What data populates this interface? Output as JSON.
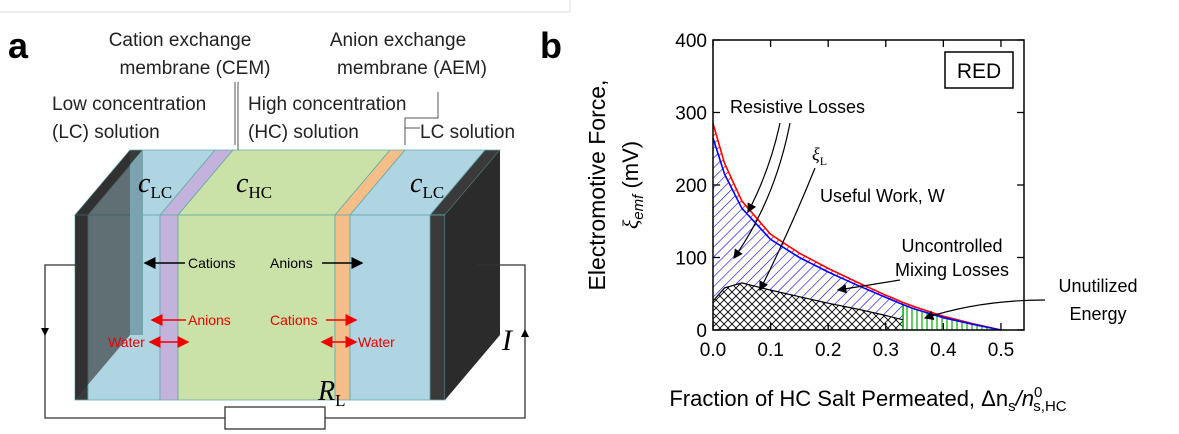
{
  "panel_a": {
    "label": "a",
    "cem": [
      "Cation exchange",
      "membrane (CEM)"
    ],
    "aem": [
      "Anion exchange",
      "membrane (AEM)"
    ],
    "low": [
      "Low concentration",
      "(LC) solution"
    ],
    "high": [
      "High concentration",
      "(HC) solution"
    ],
    "lc": "LC solution",
    "c_left": {
      "base": "c",
      "sub": "LC"
    },
    "c_mid": {
      "base": "c",
      "sub": "HC"
    },
    "c_right": {
      "base": "c",
      "sub": "LC"
    },
    "flow_black": [
      "Cations",
      "Anions"
    ],
    "flow_red_left": [
      "Anions",
      "Water"
    ],
    "flow_red_right": [
      "Cations",
      "Water"
    ],
    "current": "I",
    "resistor": {
      "base": "R",
      "sub": "L"
    }
  },
  "chart_data": {
    "type": "area",
    "panel_label": "b",
    "y_label": "Electromotive Force,",
    "y_label_symbol": {
      "base": "ξ",
      "sub": "emf",
      "unit": " (mV)"
    },
    "x_label": {
      "text": "Fraction of HC Salt Permeated, Δn",
      "sub1": "s",
      "mid": "/n",
      "sup": "0",
      "sub2": "s,HC"
    },
    "box_label": "RED",
    "annotations": {
      "resistive": "Resistive Losses",
      "xi_l": {
        "base": "ξ",
        "sub": "L"
      },
      "useful": "Useful Work, W",
      "mixing": [
        "Uncontrolled",
        "Mixing Losses"
      ],
      "unutilized": [
        "Unutilized",
        "Energy"
      ]
    },
    "x": [
      0,
      0.02,
      0.05,
      0.1,
      0.15,
      0.2,
      0.25,
      0.3,
      0.33,
      0.35,
      0.4,
      0.45,
      0.5
    ],
    "series": [
      {
        "color": "#ff0000",
        "values": [
          285,
          230,
          178,
          132,
          106,
          85,
          66,
          48,
          38,
          32,
          19,
          9,
          0
        ]
      },
      {
        "color": "#0000ff",
        "values": [
          265,
          215,
          168,
          125,
          100,
          80,
          62,
          45,
          35,
          29,
          17,
          8,
          0
        ]
      },
      {
        "color": "#000000",
        "values": [
          40,
          58,
          65,
          55,
          46,
          37,
          29,
          20,
          14,
          null,
          null,
          null,
          null
        ]
      }
    ],
    "fill_color": "#00aa00",
    "xlim": [
      0,
      0.54
    ],
    "ylim": [
      0,
      400
    ],
    "xticks": [
      {
        "value": 0,
        "label": "0.0"
      },
      0.1,
      0.2,
      0.3,
      0.4,
      0.5
    ],
    "yticks": [
      0,
      100,
      200,
      300,
      400
    ]
  }
}
